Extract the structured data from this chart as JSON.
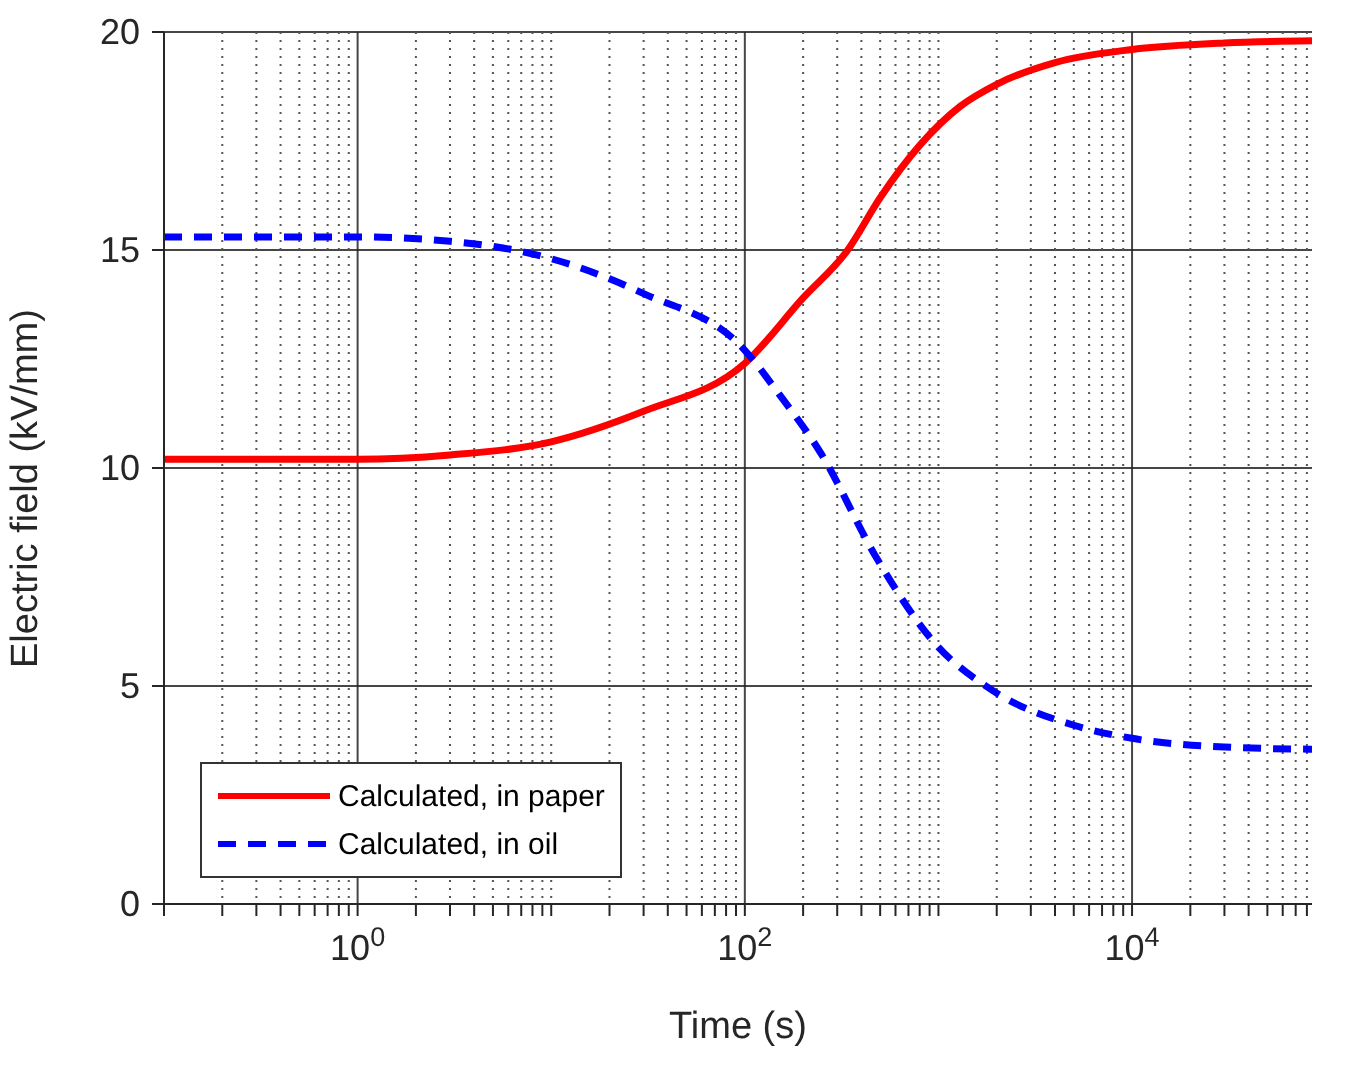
{
  "chart_data": {
    "type": "line",
    "xlabel": "Time (s)",
    "ylabel": "Electric field (kV/mm)",
    "log": "x",
    "xlim": [
      0.1,
      85000
    ],
    "xticks": [
      {
        "value": 1,
        "label": "10$^{0}$"
      },
      {
        "value": 100,
        "label": "10$^{2}$"
      },
      {
        "value": 10000,
        "label": "10$^{4}$"
      }
    ],
    "ylim": [
      0,
      20
    ],
    "yticks": [
      0,
      5,
      10,
      15,
      20
    ],
    "grid": true,
    "legend": "bottom left",
    "series": [
      {
        "name": "Calculated, in paper",
        "color": "#ff0000",
        "line_style": "solid",
        "x": [
          0.1,
          1,
          3,
          10,
          30,
          100,
          200,
          340,
          500,
          800,
          1300,
          2000,
          4000,
          10000,
          30000,
          85000
        ],
        "values": [
          10.2,
          10.2,
          10.3,
          10.6,
          11.3,
          12.4,
          13.9,
          15.0,
          16.2,
          17.4,
          18.3,
          18.8,
          19.3,
          19.6,
          19.75,
          19.8
        ]
      },
      {
        "name": "Calculated, in oil",
        "color": "#0000ff",
        "line_style": "dashed",
        "x": [
          0.1,
          1,
          3,
          10,
          30,
          100,
          150,
          250,
          470,
          950,
          1900,
          5000,
          10000,
          30000,
          85000
        ],
        "values": [
          15.3,
          15.3,
          15.2,
          14.8,
          14.0,
          12.7,
          11.7,
          10.3,
          8.0,
          6.0,
          4.9,
          4.1,
          3.8,
          3.6,
          3.55
        ]
      }
    ]
  }
}
